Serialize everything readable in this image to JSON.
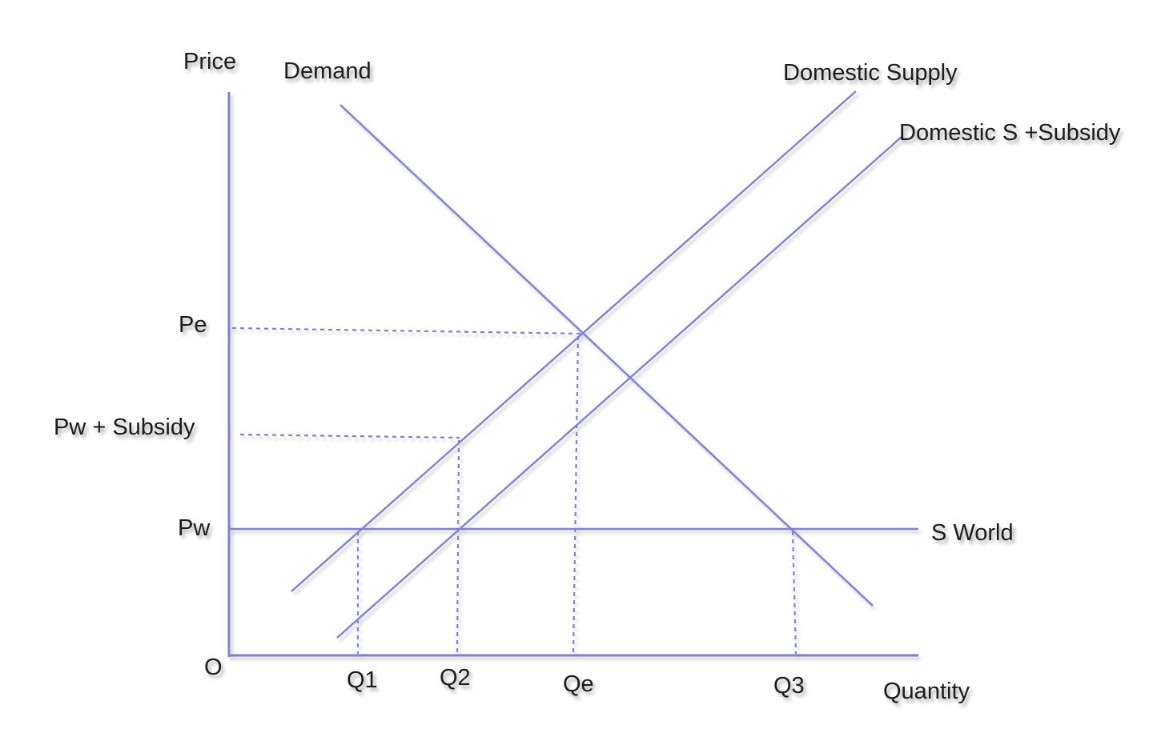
{
  "axes": {
    "y_label": "Price",
    "x_label": "Quantity",
    "origin_label": "O"
  },
  "price_levels": {
    "pe": "Pe",
    "pw_subsidy": "Pw + Subsidy",
    "pw": "Pw"
  },
  "quantity_levels": {
    "q1": "Q1",
    "q2": "Q2",
    "qe": "Qe",
    "q3": "Q3"
  },
  "curves": {
    "demand": "Demand",
    "domestic_supply": "Domestic Supply",
    "domestic_supply_subsidy": "Domestic S +Subsidy",
    "world_supply": "S World"
  },
  "colors": {
    "lines": "#7f80d8",
    "text": "#1c1c1c",
    "background": "#ffffff"
  }
}
